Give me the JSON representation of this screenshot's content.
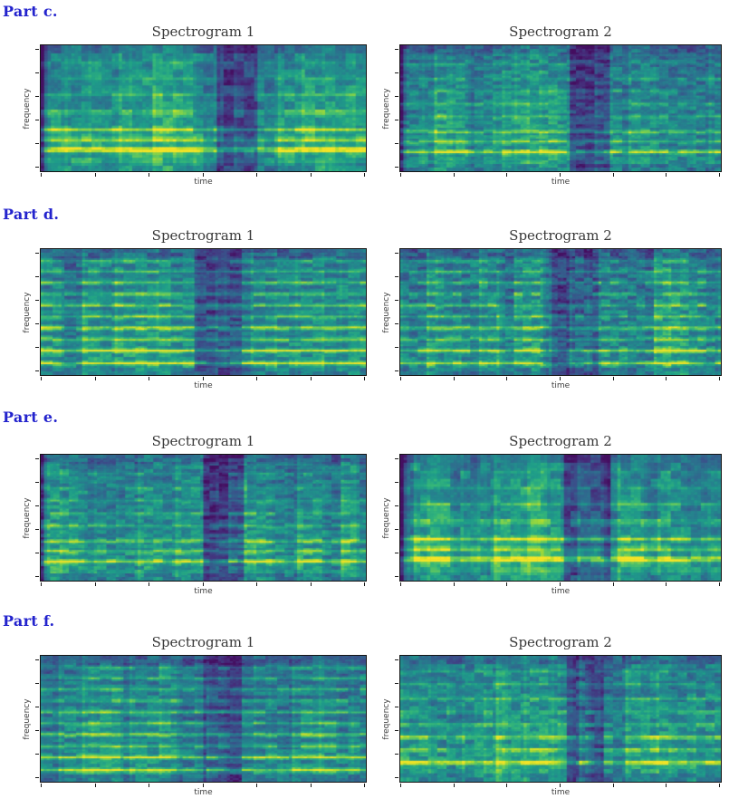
{
  "page_title": "Spectrogram comparison parts c-f",
  "colors": {
    "background": "#ffffff",
    "heading_blue": "#2323cd",
    "title_text": "#383838",
    "axis_text": "#3c3c3c",
    "spine": "#141414",
    "colormap_low": "#440154",
    "colormap_mid": "#26828e",
    "colormap_high": "#fde725"
  },
  "parts": [
    {
      "heading": "Part c."
    },
    {
      "heading": "Part d."
    },
    {
      "heading": "Part e."
    },
    {
      "heading": "Part f."
    }
  ],
  "chart_data": [
    {
      "part": "c",
      "title": "Spectrogram 1",
      "type": "heatmap",
      "xlabel": "time",
      "ylabel": "frequency",
      "colormap": "viridis",
      "x_tick_count": 7,
      "y_tick_count": 6,
      "tick_labels": "none",
      "render": {
        "seed": 11,
        "rows": 47,
        "cols": 96,
        "block_w": 3,
        "block_h": 3,
        "base": 0.44,
        "grad": 0.16,
        "block_noise": 0.11,
        "cell_noise": 0.05,
        "left_dark": true,
        "bands": [
          [
            0.24,
            0.5,
            0.05
          ],
          [
            0.55,
            0.67,
            -0.2
          ]
        ],
        "harmonics": [
          [
            0.82,
            0.5,
            0.02
          ],
          [
            0.74,
            0.28,
            0.018
          ],
          [
            0.66,
            0.36,
            0.016
          ],
          [
            0.52,
            0.2,
            0.015
          ],
          [
            0.38,
            0.15,
            0.015
          ],
          [
            0.25,
            0.11,
            0.014
          ],
          [
            0.12,
            0.08,
            0.012
          ]
        ]
      }
    },
    {
      "part": "c",
      "title": "Spectrogram 2",
      "type": "heatmap",
      "xlabel": "time",
      "ylabel": "frequency",
      "colormap": "viridis",
      "x_tick_count": 7,
      "y_tick_count": 6,
      "tick_labels": "none",
      "render": {
        "seed": 22,
        "rows": 70,
        "cols": 104,
        "block_w": 3,
        "block_h": 2,
        "base": 0.42,
        "grad": 0.15,
        "block_noise": 0.12,
        "cell_noise": 0.05,
        "left_dark": true,
        "bands": [
          [
            0.24,
            0.5,
            0.04
          ],
          [
            0.53,
            0.66,
            -0.18
          ]
        ],
        "harmonics": [
          [
            0.84,
            0.46,
            0.014
          ],
          [
            0.76,
            0.26,
            0.013
          ],
          [
            0.68,
            0.34,
            0.012
          ],
          [
            0.56,
            0.2,
            0.012
          ],
          [
            0.46,
            0.16,
            0.012
          ],
          [
            0.36,
            0.14,
            0.012
          ],
          [
            0.26,
            0.12,
            0.012
          ],
          [
            0.14,
            0.09,
            0.012
          ]
        ]
      }
    },
    {
      "part": "d",
      "title": "Spectrogram 1",
      "type": "heatmap",
      "xlabel": "time",
      "ylabel": "frequency",
      "colormap": "viridis",
      "x_tick_count": 7,
      "y_tick_count": 6,
      "tick_labels": "none",
      "render": {
        "seed": 33,
        "rows": 70,
        "cols": 110,
        "block_w": 4,
        "block_h": 2,
        "base": 0.4,
        "grad": 0.13,
        "block_noise": 0.12,
        "cell_noise": 0.05,
        "left_dark": false,
        "bands": [
          [
            0.48,
            0.62,
            -0.12
          ]
        ],
        "harmonics": [
          [
            0.9,
            0.42,
            0.013
          ],
          [
            0.8,
            0.48,
            0.013
          ],
          [
            0.71,
            0.28,
            0.012
          ],
          [
            0.62,
            0.4,
            0.012
          ],
          [
            0.53,
            0.26,
            0.012
          ],
          [
            0.44,
            0.3,
            0.012
          ],
          [
            0.35,
            0.24,
            0.012
          ],
          [
            0.26,
            0.26,
            0.012
          ],
          [
            0.17,
            0.22,
            0.012
          ],
          [
            0.09,
            0.18,
            0.012
          ]
        ]
      }
    },
    {
      "part": "d",
      "title": "Spectrogram 2",
      "type": "heatmap",
      "xlabel": "time",
      "ylabel": "frequency",
      "colormap": "viridis",
      "x_tick_count": 7,
      "y_tick_count": 6,
      "tick_labels": "none",
      "render": {
        "seed": 44,
        "rows": 70,
        "cols": 110,
        "block_w": 3,
        "block_h": 2,
        "base": 0.41,
        "grad": 0.13,
        "block_noise": 0.13,
        "cell_noise": 0.06,
        "left_dark": false,
        "bands": [
          [
            0.48,
            0.62,
            -0.11
          ]
        ],
        "harmonics": [
          [
            0.9,
            0.38,
            0.013
          ],
          [
            0.8,
            0.44,
            0.013
          ],
          [
            0.71,
            0.26,
            0.012
          ],
          [
            0.62,
            0.36,
            0.012
          ],
          [
            0.53,
            0.24,
            0.012
          ],
          [
            0.44,
            0.28,
            0.012
          ],
          [
            0.35,
            0.22,
            0.012
          ],
          [
            0.26,
            0.24,
            0.012
          ],
          [
            0.17,
            0.2,
            0.012
          ],
          [
            0.09,
            0.16,
            0.012
          ]
        ]
      }
    },
    {
      "part": "e",
      "title": "Spectrogram 1",
      "type": "heatmap",
      "xlabel": "time",
      "ylabel": "frequency",
      "colormap": "viridis",
      "x_tick_count": 7,
      "y_tick_count": 6,
      "tick_labels": "none",
      "render": {
        "seed": 55,
        "rows": 70,
        "cols": 104,
        "block_w": 3,
        "block_h": 2,
        "base": 0.42,
        "grad": 0.15,
        "block_noise": 0.12,
        "cell_noise": 0.05,
        "left_dark": true,
        "bands": [
          [
            0.24,
            0.5,
            0.04
          ],
          [
            0.5,
            0.63,
            -0.2
          ]
        ],
        "harmonics": [
          [
            0.84,
            0.46,
            0.014
          ],
          [
            0.76,
            0.26,
            0.013
          ],
          [
            0.68,
            0.34,
            0.012
          ],
          [
            0.56,
            0.2,
            0.012
          ],
          [
            0.46,
            0.16,
            0.012
          ],
          [
            0.36,
            0.14,
            0.012
          ],
          [
            0.26,
            0.12,
            0.012
          ],
          [
            0.14,
            0.09,
            0.012
          ]
        ]
      }
    },
    {
      "part": "e",
      "title": "Spectrogram 2",
      "type": "heatmap",
      "xlabel": "time",
      "ylabel": "frequency",
      "colormap": "viridis",
      "x_tick_count": 7,
      "y_tick_count": 6,
      "tick_labels": "none",
      "render": {
        "seed": 66,
        "rows": 47,
        "cols": 96,
        "block_w": 3,
        "block_h": 3,
        "base": 0.45,
        "grad": 0.16,
        "block_noise": 0.11,
        "cell_noise": 0.05,
        "left_dark": true,
        "bands": [
          [
            0.24,
            0.5,
            0.05
          ],
          [
            0.52,
            0.66,
            -0.2
          ]
        ],
        "harmonics": [
          [
            0.82,
            0.5,
            0.02
          ],
          [
            0.74,
            0.28,
            0.018
          ],
          [
            0.66,
            0.36,
            0.016
          ],
          [
            0.52,
            0.2,
            0.015
          ],
          [
            0.38,
            0.15,
            0.015
          ],
          [
            0.25,
            0.11,
            0.014
          ],
          [
            0.12,
            0.08,
            0.012
          ]
        ]
      }
    },
    {
      "part": "f",
      "title": "Spectrogram 1",
      "type": "heatmap",
      "xlabel": "time",
      "ylabel": "frequency",
      "colormap": "viridis",
      "x_tick_count": 7,
      "y_tick_count": 6,
      "tick_labels": "none",
      "render": {
        "seed": 77,
        "rows": 70,
        "cols": 110,
        "block_w": 4,
        "block_h": 2,
        "base": 0.4,
        "grad": 0.13,
        "block_noise": 0.12,
        "cell_noise": 0.05,
        "left_dark": false,
        "bands": [
          [
            0.5,
            0.62,
            -0.12
          ]
        ],
        "harmonics": [
          [
            0.9,
            0.42,
            0.013
          ],
          [
            0.8,
            0.48,
            0.013
          ],
          [
            0.71,
            0.28,
            0.012
          ],
          [
            0.62,
            0.4,
            0.012
          ],
          [
            0.53,
            0.26,
            0.012
          ],
          [
            0.44,
            0.3,
            0.012
          ],
          [
            0.35,
            0.24,
            0.012
          ],
          [
            0.26,
            0.26,
            0.012
          ],
          [
            0.17,
            0.22,
            0.012
          ],
          [
            0.09,
            0.18,
            0.012
          ]
        ]
      }
    },
    {
      "part": "f",
      "title": "Spectrogram 2",
      "type": "heatmap",
      "xlabel": "time",
      "ylabel": "frequency",
      "colormap": "viridis",
      "x_tick_count": 7,
      "y_tick_count": 6,
      "tick_labels": "none",
      "render": {
        "seed": 88,
        "rows": 60,
        "cols": 104,
        "block_w": 3,
        "block_h": 2,
        "base": 0.43,
        "grad": 0.15,
        "block_noise": 0.12,
        "cell_noise": 0.05,
        "left_dark": false,
        "bands": [
          [
            0.24,
            0.5,
            0.04
          ],
          [
            0.52,
            0.64,
            -0.16
          ]
        ],
        "harmonics": [
          [
            0.84,
            0.48,
            0.015
          ],
          [
            0.74,
            0.3,
            0.013
          ],
          [
            0.64,
            0.36,
            0.013
          ],
          [
            0.54,
            0.22,
            0.012
          ],
          [
            0.44,
            0.2,
            0.012
          ],
          [
            0.33,
            0.18,
            0.012
          ],
          [
            0.22,
            0.16,
            0.012
          ],
          [
            0.12,
            0.12,
            0.012
          ]
        ]
      }
    }
  ]
}
